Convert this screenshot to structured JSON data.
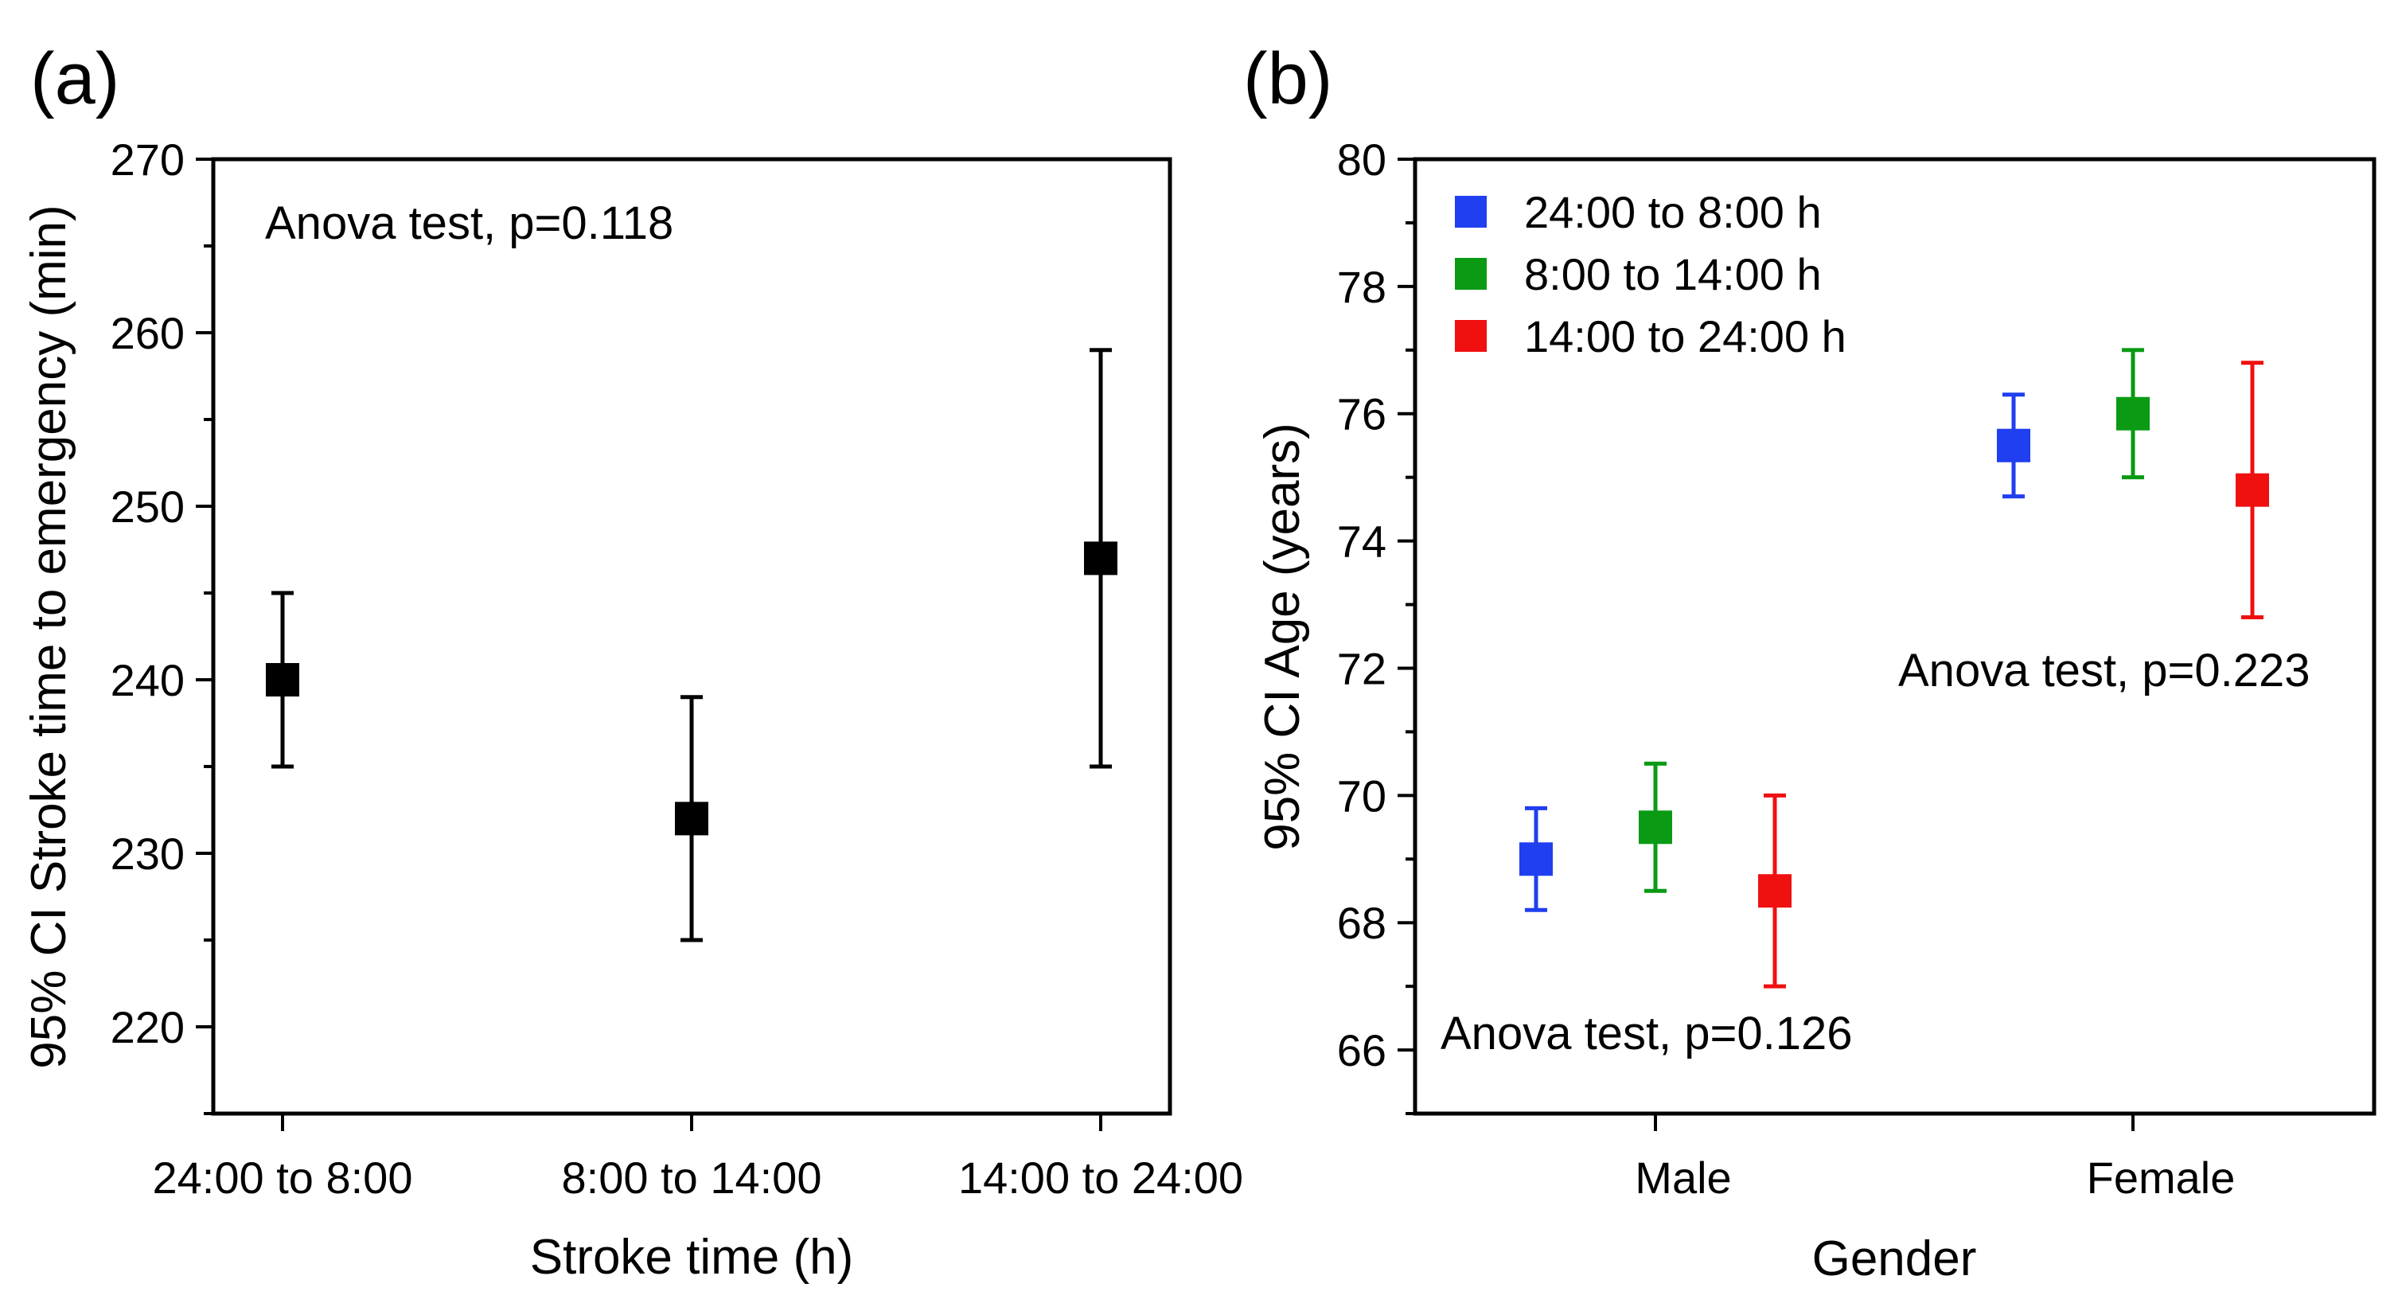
{
  "chart_data": [
    {
      "type": "scatter",
      "panel_label": "(a)",
      "title": "",
      "xlabel": "Stroke time (h)",
      "ylabel": "95% CI Stroke time to emergency (min)",
      "categories": [
        "24:00 to 8:00",
        "8:00 to 14:00",
        "14:00 to 24:00"
      ],
      "ylim": [
        215,
        270
      ],
      "yticks": [
        220,
        230,
        240,
        250,
        260,
        270
      ],
      "ytick_labels": [
        "220",
        "230",
        "240",
        "250",
        "260",
        "270"
      ],
      "minor_step": 5,
      "color": "#000000",
      "series": [
        {
          "name": "Stroke time to emergency",
          "values": [
            240,
            232,
            247
          ],
          "lower": [
            235,
            225,
            235
          ],
          "upper": [
            245,
            239,
            259
          ]
        }
      ],
      "annotation": "Anova test, p=0.118"
    },
    {
      "type": "scatter",
      "panel_label": "(b)",
      "title": "",
      "xlabel": "Gender",
      "ylabel": "95% CI Age (years)",
      "categories": [
        "Male",
        "Female"
      ],
      "ylim": [
        65,
        80
      ],
      "yticks": [
        66,
        68,
        70,
        72,
        74,
        76,
        78,
        80
      ],
      "ytick_labels": [
        "66",
        "68",
        "70",
        "72",
        "74",
        "76",
        "78",
        "80"
      ],
      "minor_step": 1,
      "legend_position": "top-left",
      "series": [
        {
          "name": "24:00 to 8:00 h",
          "color": "#1f3ff0",
          "values": [
            69.0,
            75.5
          ],
          "lower": [
            68.2,
            74.7
          ],
          "upper": [
            69.8,
            76.3
          ]
        },
        {
          "name": "8:00 to 14:00 h",
          "color": "#0a9a14",
          "values": [
            69.5,
            76.0
          ],
          "lower": [
            68.5,
            75.0
          ],
          "upper": [
            70.5,
            77.0
          ]
        },
        {
          "name": "14:00 to 24:00 h",
          "color": "#f01010",
          "values": [
            68.5,
            74.8
          ],
          "lower": [
            67.0,
            72.8
          ],
          "upper": [
            70.0,
            76.8
          ]
        }
      ],
      "annotations": [
        "Anova test, p=0.126",
        "Anova test, p=0.223"
      ]
    }
  ]
}
